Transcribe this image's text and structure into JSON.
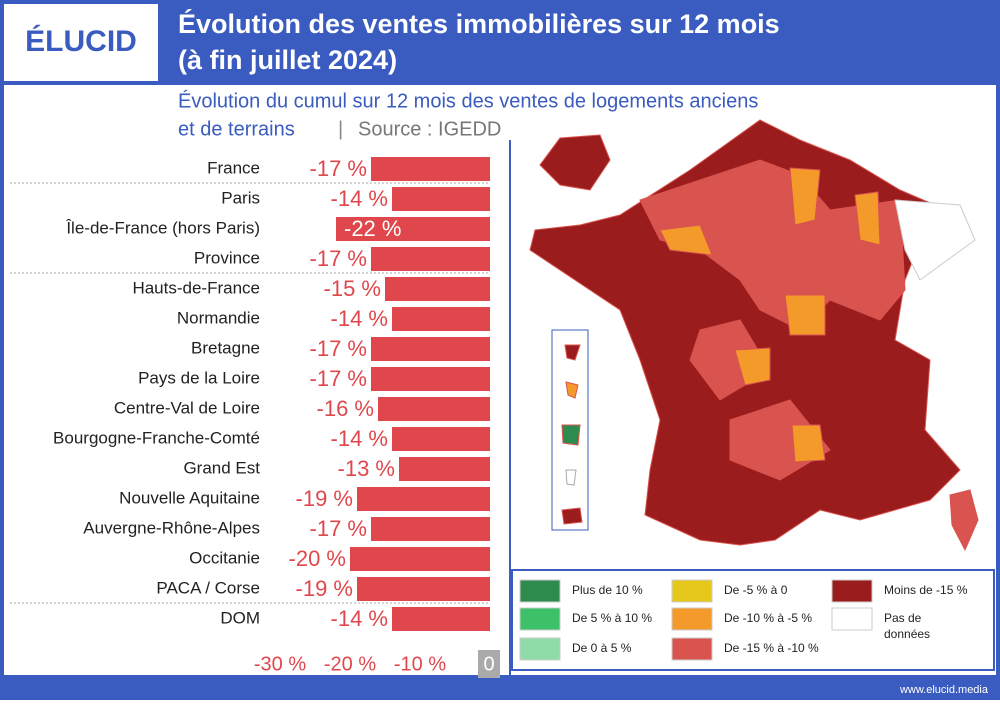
{
  "header": {
    "logo": "ÉLUCID",
    "title_lines": [
      "Évolution des ventes immobilières sur 12 mois",
      "(à fin juillet 2024)"
    ]
  },
  "subtitle": {
    "line1": "Évolution du cumul sur 12 mois des ventes de logements anciens",
    "line2": "et de terrains",
    "separator": "|",
    "source": "Source : IGEDD"
  },
  "chart_data": {
    "type": "bar",
    "orientation": "horizontal",
    "color": "#e0474c",
    "categories": [
      "France",
      "Paris",
      "Île-de-France (hors Paris)",
      "Province",
      "Hauts-de-France",
      "Normandie",
      "Bretagne",
      "Pays de la Loire",
      "Centre-Val de Loire",
      "Bourgogne-Franche-Comté",
      "Grand Est",
      "Nouvelle Aquitaine",
      "Auvergne-Rhône-Alpes",
      "Occitanie",
      "PACA / Corse",
      "DOM"
    ],
    "values": [
      -17,
      -14,
      -22,
      -17,
      -15,
      -14,
      -17,
      -17,
      -16,
      -14,
      -13,
      -19,
      -17,
      -20,
      -19,
      -14
    ],
    "value_labels": [
      "-17 %",
      "-14 %",
      "-22 %",
      "-17 %",
      "-15 %",
      "-14 %",
      "-17 %",
      "-17 %",
      "-16 %",
      "-14 %",
      "-13 %",
      "-19 %",
      "-17 %",
      "-20 %",
      "-19 %",
      "-14 %"
    ],
    "xlim": [
      -30,
      0
    ],
    "xticks": [
      {
        "value": -30,
        "label": "-30 %"
      },
      {
        "value": -20,
        "label": "-20 %"
      },
      {
        "value": -10,
        "label": "-10 %"
      },
      0
    ]
  },
  "map_legend": [
    {
      "label": "Plus de 10 %",
      "color": "#2e8b4e"
    },
    {
      "label": "De 5 % à 10 %",
      "color": "#3cc068"
    },
    {
      "label": "De 0 à 5 %",
      "color": "#8fdca8"
    },
    {
      "label": "De -5 % à 0",
      "color": "#e6c81a"
    },
    {
      "label": "De -10 % à -5 %",
      "color": "#f39a2b"
    },
    {
      "label": "De -15 % à -10 %",
      "color": "#d9534f"
    },
    {
      "label": "Moins de -15 %",
      "color": "#9b1c1c"
    },
    {
      "label": "Pas de données",
      "color": "#ffffff"
    }
  ],
  "footer": "www.elucid.media"
}
